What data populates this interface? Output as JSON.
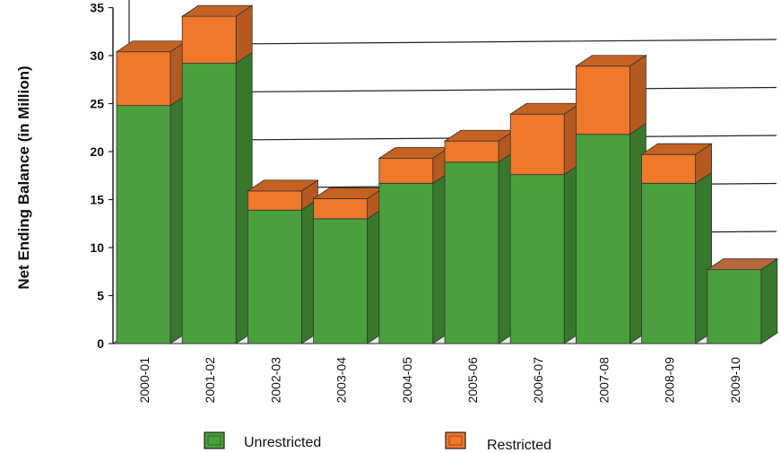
{
  "chart_data": {
    "type": "bar",
    "stacked": true,
    "three_d": true,
    "title": "",
    "xlabel": "",
    "ylabel": "Net Ending Balance (in Million)",
    "ylim": [
      0,
      35
    ],
    "yticks": [
      0,
      5,
      10,
      15,
      20,
      25,
      30,
      35
    ],
    "grid": true,
    "legend_position": "bottom",
    "categories": [
      "2000-01",
      "2001-02",
      "2002-03",
      "2003-04",
      "2004-05",
      "2005-06",
      "2006-07",
      "2007-08",
      "2008-09",
      "2009-10"
    ],
    "series": [
      {
        "name": "Unrestricted",
        "color": "#4aa03c",
        "values": [
          24.8,
          29.2,
          13.9,
          13.0,
          16.7,
          18.9,
          17.6,
          21.8,
          16.7,
          7.7
        ]
      },
      {
        "name": "Restricted",
        "color": "#f0782a",
        "values": [
          5.6,
          4.9,
          2.0,
          2.1,
          2.6,
          2.2,
          6.3,
          7.1,
          3.0,
          0.0
        ]
      }
    ]
  }
}
